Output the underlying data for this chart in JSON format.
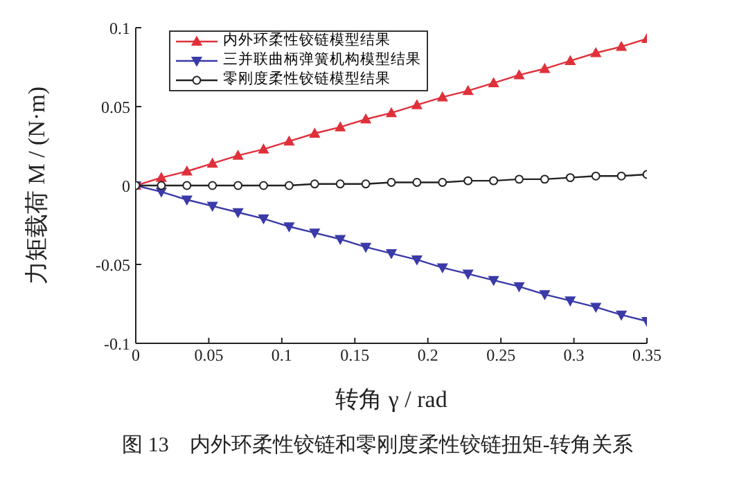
{
  "chart_data": {
    "type": "line",
    "xlabel": "转角 γ / rad",
    "ylabel": "力矩载荷 M / (N·m)",
    "x": [
      0,
      0.0175,
      0.035,
      0.0525,
      0.07,
      0.0875,
      0.105,
      0.1225,
      0.14,
      0.1575,
      0.175,
      0.1925,
      0.21,
      0.2275,
      0.245,
      0.2625,
      0.28,
      0.2975,
      0.315,
      0.3325,
      0.35
    ],
    "series": [
      {
        "name": "内外环柔性铰链模型结果",
        "color": "#e0303a",
        "marker": "triangle",
        "values": [
          0,
          0.005,
          0.009,
          0.014,
          0.019,
          0.023,
          0.028,
          0.033,
          0.037,
          0.042,
          0.046,
          0.051,
          0.056,
          0.06,
          0.065,
          0.07,
          0.074,
          0.079,
          0.084,
          0.088,
          0.093
        ]
      },
      {
        "name": "三并联曲柄弹簧机构模型结果",
        "color": "#3a3aa8",
        "marker": "triangle-down",
        "values": [
          0,
          -0.004,
          -0.009,
          -0.013,
          -0.017,
          -0.021,
          -0.026,
          -0.03,
          -0.034,
          -0.039,
          -0.043,
          -0.047,
          -0.052,
          -0.056,
          -0.06,
          -0.064,
          -0.069,
          -0.073,
          -0.077,
          -0.082,
          -0.086
        ]
      },
      {
        "name": "零刚度柔性铰链模型结果",
        "color": "#222222",
        "marker": "circle",
        "values": [
          0,
          0,
          0,
          0,
          0,
          0,
          0,
          0.001,
          0.001,
          0.001,
          0.002,
          0.002,
          0.002,
          0.003,
          0.003,
          0.004,
          0.004,
          0.005,
          0.006,
          0.006,
          0.007
        ]
      }
    ],
    "xlim": [
      0,
      0.35
    ],
    "xticks": [
      0,
      0.05,
      0.1,
      0.15,
      0.2,
      0.25,
      0.3,
      0.35
    ],
    "ylim": [
      -0.1,
      0.1
    ],
    "yticks": [
      -0.1,
      -0.05,
      0,
      0.05,
      0.1
    ],
    "grid": false,
    "legend": "top left",
    "annotations": [
      "图 13　内外环柔性铰链和零刚度柔性铰链扭矩-转角关系"
    ]
  }
}
